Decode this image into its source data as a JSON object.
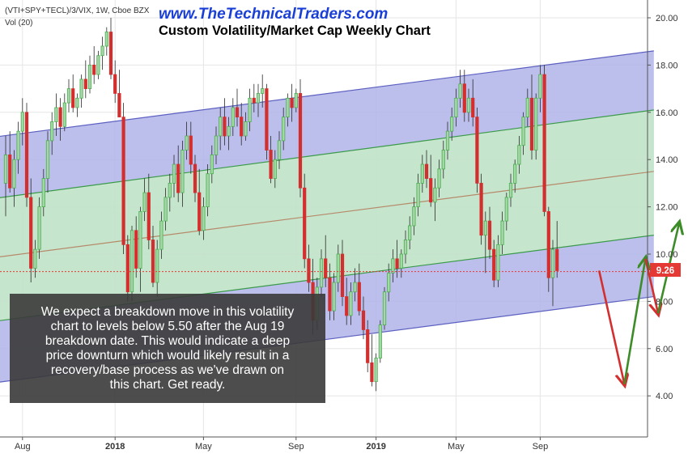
{
  "header": {
    "symbol": "(VTI+SPY+TECL)/3/VIX, 1W, Cboe BZX",
    "volume": "Vol (20)",
    "website": "www.TheTechnicalTraders.com",
    "title": "Custom Volatility/Market Cap Weekly Chart"
  },
  "annotation": {
    "lines": [
      "We expect a breakdown move in this volatility",
      "chart to levels below 5.50 after the Aug 19",
      "breakdown date.  This would indicate a deep",
      "price downturn which would likely result in a",
      "recovery/base process as we've drawn on",
      "this chart.  Get ready."
    ]
  },
  "price_label": "9.26",
  "colors": {
    "up": "#4caf50",
    "down": "#d32f2f",
    "channel_outer": "#b0b4e8",
    "channel_inner": "#c8ebc8",
    "outer_line": "#5c60c0",
    "inner_line": "#3a9a4a",
    "mid_line": "#b58a6a",
    "price_line": "#e53935",
    "arrow_red": "#d32f2f",
    "arrow_green": "#3c8c28",
    "website": "#1a3fd6",
    "annotation_bg": "#3a3a3a"
  },
  "chart_data": {
    "type": "candlestick",
    "title": "Custom Volatility/Market Cap Weekly Chart",
    "symbol": "(VTI+SPY+TECL)/3/VIX",
    "interval": "1W",
    "ylim": [
      2.6,
      20.6
    ],
    "y_ticks": [
      "4.00",
      "6.00",
      "8.00",
      "10.00",
      "12.00",
      "14.00",
      "16.00",
      "18.00",
      "20.00"
    ],
    "x_ticks": [
      "Aug",
      "2018",
      "May",
      "Sep",
      "2019",
      "May",
      "Sep"
    ],
    "x_tick_weeks": [
      4,
      26,
      47,
      69,
      88,
      107,
      127
    ],
    "last_price": 9.26,
    "channel": {
      "start_week": -5,
      "end_week": 154,
      "outer_upper": [
        14.9,
        18.6
      ],
      "inner_upper": [
        12.3,
        16.1
      ],
      "midline": [
        9.8,
        13.5
      ],
      "inner_lower": [
        7.1,
        10.8
      ],
      "outer_lower": [
        4.5,
        8.2
      ]
    },
    "projection_path": [
      {
        "week": 141,
        "value": 9.3
      },
      {
        "week": 147,
        "value": 4.5
      },
      {
        "week": 152,
        "value": 9.8
      },
      {
        "week": 155,
        "value": 7.5
      },
      {
        "week": 160,
        "value": 11.3
      }
    ],
    "candles": [
      [
        13.0,
        15.0,
        11.6,
        14.2
      ],
      [
        14.2,
        15.2,
        12.6,
        12.8
      ],
      [
        12.8,
        14.4,
        12.0,
        14.0
      ],
      [
        14.0,
        15.6,
        13.4,
        15.2
      ],
      [
        15.2,
        16.6,
        14.6,
        16.0
      ],
      [
        16.0,
        16.4,
        12.0,
        12.4
      ],
      [
        12.4,
        13.2,
        8.8,
        9.4
      ],
      [
        9.4,
        10.6,
        9.0,
        10.2
      ],
      [
        10.2,
        12.4,
        9.8,
        12.0
      ],
      [
        12.0,
        13.6,
        11.6,
        13.2
      ],
      [
        13.2,
        15.2,
        12.6,
        14.8
      ],
      [
        14.8,
        16.0,
        14.2,
        15.6
      ],
      [
        15.6,
        16.8,
        15.0,
        16.2
      ],
      [
        16.2,
        16.6,
        14.8,
        15.4
      ],
      [
        15.4,
        16.8,
        15.2,
        16.4
      ],
      [
        16.4,
        17.4,
        16.0,
        17.0
      ],
      [
        17.0,
        17.6,
        16.0,
        16.2
      ],
      [
        16.2,
        16.8,
        15.8,
        16.6
      ],
      [
        16.6,
        17.6,
        16.2,
        17.4
      ],
      [
        17.4,
        18.2,
        16.6,
        17.0
      ],
      [
        17.0,
        18.4,
        16.8,
        18.0
      ],
      [
        18.0,
        18.8,
        17.2,
        17.6
      ],
      [
        17.6,
        18.6,
        17.4,
        18.4
      ],
      [
        18.4,
        19.2,
        17.8,
        18.8
      ],
      [
        18.8,
        19.6,
        18.4,
        19.4
      ],
      [
        19.4,
        20.0,
        17.4,
        17.6
      ],
      [
        17.6,
        18.2,
        16.4,
        16.8
      ],
      [
        16.8,
        17.8,
        15.8,
        15.8
      ],
      [
        15.8,
        16.4,
        10.0,
        10.4
      ],
      [
        10.4,
        10.8,
        8.0,
        8.4
      ],
      [
        8.4,
        11.2,
        8.0,
        11.0
      ],
      [
        11.0,
        11.6,
        9.0,
        9.4
      ],
      [
        9.4,
        12.0,
        8.4,
        11.8
      ],
      [
        11.8,
        13.2,
        11.4,
        12.6
      ],
      [
        12.6,
        13.4,
        10.2,
        10.6
      ],
      [
        10.6,
        11.2,
        8.6,
        8.8
      ],
      [
        8.8,
        10.6,
        8.2,
        10.2
      ],
      [
        10.2,
        11.8,
        9.8,
        11.4
      ],
      [
        11.4,
        12.8,
        11.0,
        12.4
      ],
      [
        12.4,
        13.4,
        11.8,
        13.0
      ],
      [
        13.0,
        14.2,
        12.4,
        13.8
      ],
      [
        13.8,
        14.6,
        12.2,
        12.6
      ],
      [
        12.6,
        14.8,
        12.0,
        14.4
      ],
      [
        14.4,
        15.6,
        14.0,
        15.0
      ],
      [
        15.0,
        15.6,
        13.4,
        13.8
      ],
      [
        13.8,
        14.2,
        12.2,
        12.6
      ],
      [
        12.6,
        13.6,
        10.8,
        11.0
      ],
      [
        11.0,
        12.4,
        10.6,
        12.0
      ],
      [
        12.0,
        13.8,
        11.6,
        13.4
      ],
      [
        13.4,
        14.6,
        13.0,
        14.2
      ],
      [
        14.2,
        15.4,
        13.8,
        15.0
      ],
      [
        15.0,
        16.2,
        14.4,
        15.8
      ],
      [
        15.8,
        16.6,
        14.6,
        15.0
      ],
      [
        15.0,
        15.8,
        14.4,
        15.4
      ],
      [
        15.4,
        16.6,
        15.0,
        16.2
      ],
      [
        16.2,
        17.0,
        15.4,
        15.8
      ],
      [
        15.8,
        16.4,
        14.6,
        15.0
      ],
      [
        15.0,
        16.0,
        14.8,
        15.6
      ],
      [
        15.6,
        17.0,
        15.2,
        16.6
      ],
      [
        16.6,
        17.2,
        16.0,
        16.4
      ],
      [
        16.4,
        17.2,
        15.8,
        16.8
      ],
      [
        16.8,
        17.6,
        16.2,
        17.0
      ],
      [
        17.0,
        17.2,
        14.0,
        14.4
      ],
      [
        14.4,
        15.0,
        13.0,
        13.2
      ],
      [
        13.2,
        14.4,
        12.8,
        14.0
      ],
      [
        14.0,
        15.2,
        13.6,
        14.8
      ],
      [
        14.8,
        16.2,
        14.4,
        15.8
      ],
      [
        15.8,
        16.8,
        15.4,
        16.6
      ],
      [
        16.6,
        17.2,
        15.6,
        16.2
      ],
      [
        16.2,
        17.0,
        16.0,
        16.8
      ],
      [
        16.8,
        17.4,
        12.4,
        12.8
      ],
      [
        12.8,
        13.4,
        9.4,
        9.8
      ],
      [
        9.8,
        10.4,
        8.4,
        8.8
      ],
      [
        8.8,
        9.8,
        6.6,
        7.2
      ],
      [
        7.2,
        9.0,
        6.8,
        8.6
      ],
      [
        8.6,
        10.2,
        8.2,
        9.8
      ],
      [
        9.8,
        10.8,
        8.6,
        9.0
      ],
      [
        9.0,
        9.6,
        7.2,
        7.6
      ],
      [
        7.6,
        9.2,
        7.2,
        8.8
      ],
      [
        8.8,
        10.4,
        8.4,
        10.0
      ],
      [
        10.0,
        10.6,
        7.8,
        8.2
      ],
      [
        8.2,
        9.0,
        7.0,
        7.4
      ],
      [
        7.4,
        8.8,
        7.0,
        8.4
      ],
      [
        8.4,
        9.4,
        8.0,
        8.8
      ],
      [
        8.8,
        9.6,
        7.4,
        7.6
      ],
      [
        7.6,
        8.2,
        6.4,
        6.8
      ],
      [
        6.8,
        7.2,
        5.0,
        5.4
      ],
      [
        5.4,
        6.6,
        4.4,
        4.6
      ],
      [
        4.6,
        5.8,
        4.2,
        5.6
      ],
      [
        5.6,
        7.2,
        5.4,
        7.0
      ],
      [
        7.0,
        8.6,
        6.8,
        8.4
      ],
      [
        8.4,
        9.6,
        8.0,
        9.2
      ],
      [
        9.2,
        10.2,
        8.8,
        9.8
      ],
      [
        9.8,
        10.6,
        9.0,
        9.4
      ],
      [
        9.4,
        10.2,
        9.0,
        10.0
      ],
      [
        10.0,
        11.0,
        9.6,
        10.6
      ],
      [
        10.6,
        11.6,
        10.2,
        11.2
      ],
      [
        11.2,
        12.4,
        10.8,
        12.0
      ],
      [
        12.0,
        13.4,
        11.6,
        13.0
      ],
      [
        13.0,
        14.2,
        12.6,
        13.8
      ],
      [
        13.8,
        14.4,
        12.8,
        13.2
      ],
      [
        13.2,
        14.2,
        12.0,
        12.2
      ],
      [
        12.2,
        13.2,
        11.4,
        12.8
      ],
      [
        12.8,
        14.0,
        12.4,
        13.6
      ],
      [
        13.6,
        14.8,
        13.2,
        14.4
      ],
      [
        14.4,
        15.6,
        14.0,
        15.2
      ],
      [
        15.2,
        16.2,
        14.8,
        15.8
      ],
      [
        15.8,
        17.0,
        15.4,
        16.6
      ],
      [
        16.6,
        17.8,
        16.2,
        17.2
      ],
      [
        17.2,
        17.8,
        15.6,
        16.0
      ],
      [
        16.0,
        17.0,
        15.6,
        16.6
      ],
      [
        16.6,
        17.4,
        15.4,
        15.8
      ],
      [
        15.8,
        16.2,
        12.6,
        13.0
      ],
      [
        13.0,
        13.4,
        10.4,
        10.8
      ],
      [
        10.8,
        11.8,
        9.2,
        11.4
      ],
      [
        11.4,
        12.0,
        9.8,
        10.2
      ],
      [
        10.2,
        10.6,
        8.6,
        8.9
      ],
      [
        8.9,
        10.8,
        8.6,
        10.4
      ],
      [
        10.4,
        11.8,
        10.0,
        11.4
      ],
      [
        11.4,
        12.6,
        11.0,
        12.4
      ],
      [
        12.4,
        13.4,
        12.0,
        13.0
      ],
      [
        13.0,
        14.0,
        12.6,
        13.8
      ],
      [
        13.8,
        15.0,
        13.4,
        14.6
      ],
      [
        14.6,
        16.0,
        14.2,
        15.8
      ],
      [
        15.8,
        17.0,
        15.4,
        16.6
      ],
      [
        16.6,
        17.6,
        14.0,
        14.4
      ],
      [
        14.4,
        16.8,
        14.0,
        16.6
      ],
      [
        16.6,
        18.0,
        16.0,
        17.6
      ],
      [
        17.6,
        18.0,
        11.6,
        11.8
      ],
      [
        11.8,
        12.0,
        8.4,
        9.0
      ],
      [
        9.0,
        10.6,
        7.8,
        10.2
      ],
      [
        10.2,
        11.4,
        9.0,
        9.3
      ]
    ]
  }
}
